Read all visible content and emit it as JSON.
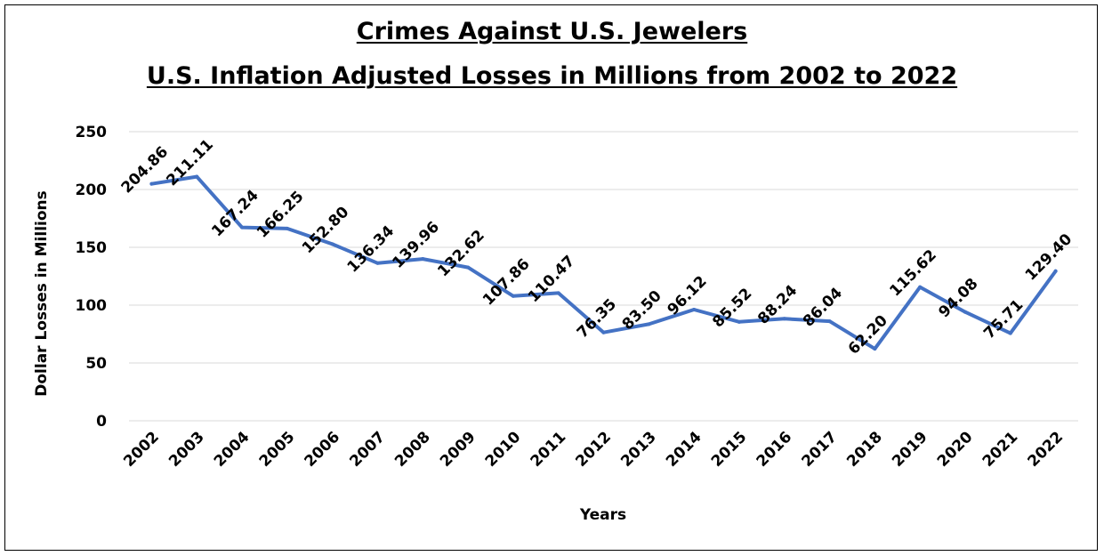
{
  "chart_data": {
    "type": "line",
    "title": "Crimes Against U.S. Jewelers",
    "subtitle": "U.S. Inflation Adjusted Losses in Millions from 2002 to 2022",
    "xlabel": "Years",
    "ylabel": "Dollar Losses in Millions",
    "categories": [
      "2002",
      "2003",
      "2004",
      "2005",
      "2006",
      "2007",
      "2008",
      "2009",
      "2010",
      "2011",
      "2012",
      "2013",
      "2014",
      "2015",
      "2016",
      "2017",
      "2018",
      "2019",
      "2020",
      "2021",
      "2022"
    ],
    "values": [
      204.86,
      211.11,
      167.24,
      166.25,
      152.8,
      136.34,
      139.96,
      132.62,
      107.86,
      110.47,
      76.35,
      83.5,
      96.12,
      85.52,
      88.24,
      86.04,
      62.2,
      115.62,
      94.08,
      75.71,
      129.4
    ],
    "data_labels": [
      "204.86",
      "211.11",
      "167.24",
      "166.25",
      "152.80",
      "136.34",
      "139.96",
      "132.62",
      "107.86",
      "110.47",
      "76.35",
      "83.50",
      "96.12",
      "85.52",
      "88.24",
      "86.04",
      "62.20",
      "115.62",
      "94.08",
      "75.71",
      "129.40"
    ],
    "ylim": [
      0,
      250
    ],
    "yticks": [
      "0",
      "50",
      "100",
      "150",
      "200",
      "250"
    ],
    "grid": true,
    "line_color": "#4472C4",
    "grid_color": "#D9D9D9"
  }
}
